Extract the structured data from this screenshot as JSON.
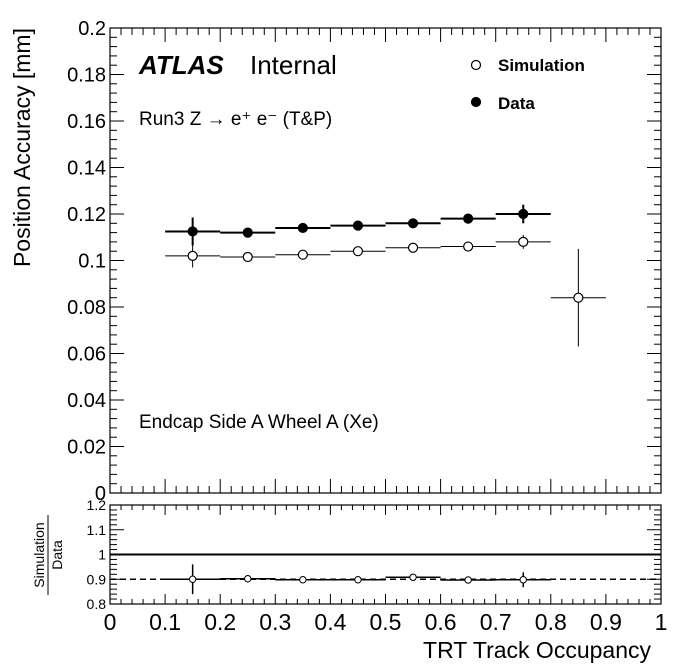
{
  "chart_data": [
    {
      "type": "scatter",
      "panel": "main",
      "title_bold": "ATLAS",
      "title_rest": "Internal",
      "annotation_process": "Run3 Z → e⁺ e⁻ (T&P)",
      "annotation_region": "Endcap Side A Wheel A (Xe)",
      "ylabel": "Position Accuracy [mm]",
      "xlabel": "",
      "xlim": [
        0,
        1
      ],
      "ylim": [
        0,
        0.2
      ],
      "y_ticks": [
        "0",
        "0.02",
        "0.04",
        "0.06",
        "0.08",
        "0.1",
        "0.12",
        "0.14",
        "0.16",
        "0.18",
        "0.2"
      ],
      "legend_position": "top-right",
      "grid": false,
      "series": [
        {
          "name": "Simulation",
          "marker": "open-circle",
          "points": [
            {
              "x": 0.15,
              "y": 0.102,
              "xerr": 0.05,
              "yerr": 0.005
            },
            {
              "x": 0.25,
              "y": 0.1015,
              "xerr": 0.05,
              "yerr": 0.0015
            },
            {
              "x": 0.35,
              "y": 0.1025,
              "xerr": 0.05,
              "yerr": 0.001
            },
            {
              "x": 0.45,
              "y": 0.104,
              "xerr": 0.05,
              "yerr": 0.001
            },
            {
              "x": 0.55,
              "y": 0.1055,
              "xerr": 0.05,
              "yerr": 0.001
            },
            {
              "x": 0.65,
              "y": 0.106,
              "xerr": 0.05,
              "yerr": 0.0015
            },
            {
              "x": 0.75,
              "y": 0.108,
              "xerr": 0.05,
              "yerr": 0.003
            },
            {
              "x": 0.85,
              "y": 0.084,
              "xerr": 0.05,
              "yerr": 0.021
            }
          ]
        },
        {
          "name": "Data",
          "marker": "filled-circle",
          "points": [
            {
              "x": 0.15,
              "y": 0.1125,
              "xerr": 0.05,
              "yerr": 0.006
            },
            {
              "x": 0.25,
              "y": 0.112,
              "xerr": 0.05,
              "yerr": 0.002
            },
            {
              "x": 0.35,
              "y": 0.114,
              "xerr": 0.05,
              "yerr": 0.0015
            },
            {
              "x": 0.45,
              "y": 0.115,
              "xerr": 0.05,
              "yerr": 0.0015
            },
            {
              "x": 0.55,
              "y": 0.116,
              "xerr": 0.05,
              "yerr": 0.0015
            },
            {
              "x": 0.65,
              "y": 0.118,
              "xerr": 0.05,
              "yerr": 0.0015
            },
            {
              "x": 0.75,
              "y": 0.12,
              "xerr": 0.05,
              "yerr": 0.004
            }
          ]
        }
      ]
    },
    {
      "type": "scatter",
      "panel": "ratio",
      "ylabel_num": "Simulation",
      "ylabel_den": "Data",
      "xlabel": "TRT Track Occupancy",
      "xlim": [
        0,
        1
      ],
      "ylim": [
        0.8,
        1.2
      ],
      "x_ticks": [
        "0",
        "0.1",
        "0.2",
        "0.3",
        "0.4",
        "0.5",
        "0.6",
        "0.7",
        "0.8",
        "0.9",
        "1"
      ],
      "y_ticks": [
        "0.8",
        "0.9",
        "1",
        "1.1",
        "1.2"
      ],
      "reference_line": 1.0,
      "mean_line": 0.9,
      "series": [
        {
          "name": "Simulation/Data",
          "marker": "open-circle",
          "points": [
            {
              "x": 0.15,
              "y": 0.9,
              "xerr": 0.05,
              "yerr": 0.06
            },
            {
              "x": 0.25,
              "y": 0.902,
              "xerr": 0.05,
              "yerr": 0.015
            },
            {
              "x": 0.35,
              "y": 0.898,
              "xerr": 0.05,
              "yerr": 0.01
            },
            {
              "x": 0.45,
              "y": 0.898,
              "xerr": 0.05,
              "yerr": 0.01
            },
            {
              "x": 0.55,
              "y": 0.908,
              "xerr": 0.05,
              "yerr": 0.01
            },
            {
              "x": 0.65,
              "y": 0.897,
              "xerr": 0.05,
              "yerr": 0.012
            },
            {
              "x": 0.75,
              "y": 0.898,
              "xerr": 0.05,
              "yerr": 0.03
            }
          ]
        }
      ]
    }
  ]
}
